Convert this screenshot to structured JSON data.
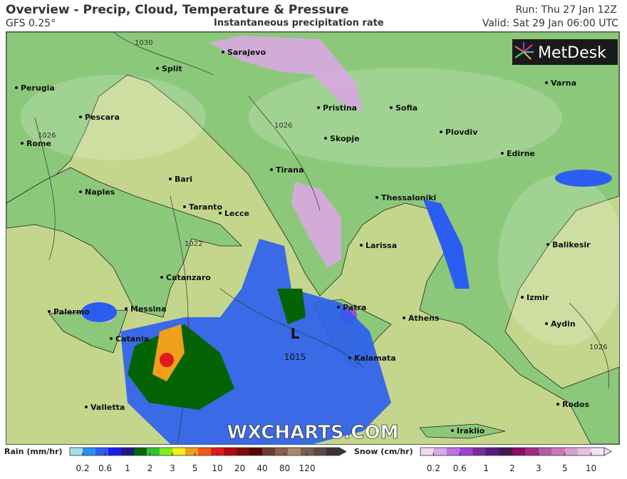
{
  "header": {
    "title": "Overview - Precip, Cloud, Temperature & Pressure",
    "model": "GFS 0.25°",
    "subtitle": "Instantaneous precipitation rate",
    "run": "Run: Thu 27 Jan 12Z",
    "valid": "Valid: Sat 29 Jan 06:00 UTC"
  },
  "logo": {
    "text": "MetDesk",
    "icon": "metdesk-starburst-icon"
  },
  "watermark": "WXCHARTS.COM",
  "map": {
    "cities": [
      "Sarajevo",
      "Split",
      "Perugia",
      "Pescara",
      "Rome",
      "Bari",
      "Naples",
      "Taranto",
      "Lecce",
      "Catanzaro",
      "Palermo",
      "Messina",
      "Catania",
      "Valletta",
      "Pristina",
      "Sofia",
      "Skopje",
      "Plovdiv",
      "Tirana",
      "Edirne",
      "Varna",
      "Thessaloniki",
      "Larissa",
      "Balikesir",
      "Izmir",
      "Aydin",
      "Athens",
      "Patra",
      "Kalamata",
      "Rodos",
      "Iraklio"
    ],
    "isobar_labels": [
      "1030",
      "1026",
      "1026",
      "1022",
      "1026"
    ],
    "low": {
      "symbol": "L",
      "pressure": "1015"
    }
  },
  "legend": {
    "rain": {
      "label": "Rain (mm/hr)",
      "ticks": [
        "0.2",
        "0.6",
        "1",
        "2",
        "3",
        "5",
        "10",
        "20",
        "40",
        "80",
        "120"
      ],
      "colors": [
        "#a8dde6",
        "#2b8ff0",
        "#2b5ef0",
        "#1b1bef",
        "#1a1a80",
        "#046404",
        "#2fc42f",
        "#7ff01a",
        "#f0f01a",
        "#f0a01a",
        "#f05a1a",
        "#e01a1a",
        "#b00a0a",
        "#800a0a",
        "#500505",
        "#6b3a2e",
        "#8c5f4e",
        "#a88870",
        "#7a6050",
        "#5a4a45",
        "#3a3535"
      ]
    },
    "snow": {
      "label": "Snow (cm/hr)",
      "ticks": [
        "0.2",
        "0.6",
        "1",
        "2",
        "3",
        "5",
        "10"
      ],
      "colors": [
        "#f0d8f0",
        "#d8a8e8",
        "#c070e0",
        "#a040d0",
        "#7a2a9a",
        "#5a1a7a",
        "#401a50",
        "#8a0a6a",
        "#a02a8a",
        "#b858a8",
        "#c878b8",
        "#d8a0d0",
        "#e8c0e0",
        "#f4e4f4"
      ]
    }
  },
  "colors": {
    "land": "#8cc87a",
    "sea": "#c4d68c",
    "rain": "#2850e0",
    "snow": "#d8a8e0"
  }
}
